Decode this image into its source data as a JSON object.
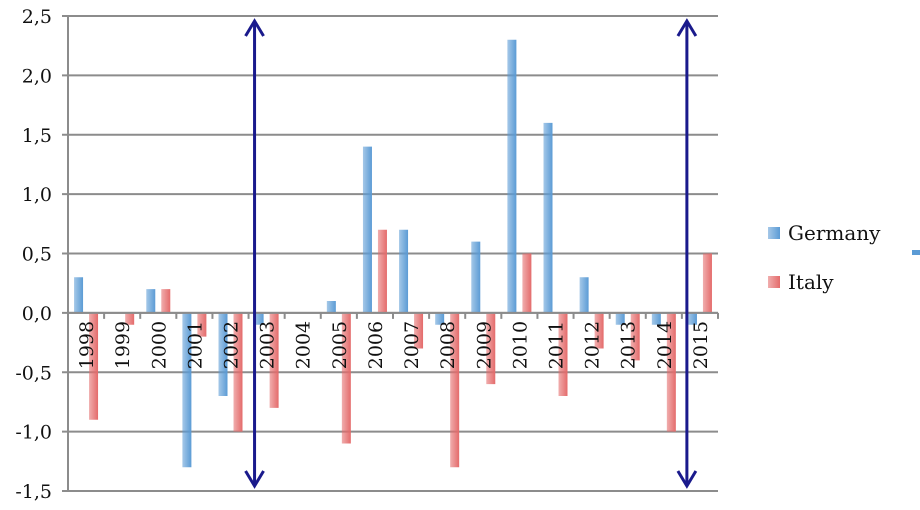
{
  "chart_data": {
    "type": "bar",
    "categories": [
      "1998",
      "1999",
      "2000",
      "2001",
      "2002",
      "2003",
      "2004",
      "2005",
      "2006",
      "2007",
      "2008",
      "2009",
      "2010",
      "2011",
      "2012",
      "2013",
      "2014",
      "2015"
    ],
    "series": [
      {
        "name": "Germany",
        "color": "#5b9bd5",
        "values": [
          0.3,
          0.0,
          0.2,
          -1.3,
          -0.7,
          -0.1,
          0.0,
          0.1,
          1.4,
          0.7,
          -0.1,
          0.6,
          2.3,
          1.6,
          0.3,
          -0.1,
          -0.1,
          -0.1
        ]
      },
      {
        "name": "Italy",
        "color": "#e46b6b",
        "values": [
          -0.9,
          -0.1,
          0.2,
          -0.2,
          -1.0,
          -0.8,
          0.0,
          -1.1,
          0.7,
          -0.3,
          -1.3,
          -0.6,
          0.5,
          -0.7,
          -0.3,
          -0.4,
          -1.0,
          0.5
        ]
      }
    ],
    "ylim": [
      -1.5,
      2.5
    ],
    "yticks": [
      "2,5",
      "2,0",
      "1,5",
      "1,0",
      "0,5",
      "0,0",
      "-0,5",
      "-1,0",
      "-1,5"
    ],
    "ytick_values": [
      2.5,
      2.0,
      1.5,
      1.0,
      0.5,
      0.0,
      -0.5,
      -1.0,
      -1.5
    ],
    "grid": true,
    "legend_position": "right",
    "annotations": [
      {
        "type": "double-arrow",
        "x_category": "2003",
        "color": "#1a1a8c"
      },
      {
        "type": "double-arrow",
        "x_category": "2015",
        "color": "#1a1a8c"
      }
    ]
  }
}
